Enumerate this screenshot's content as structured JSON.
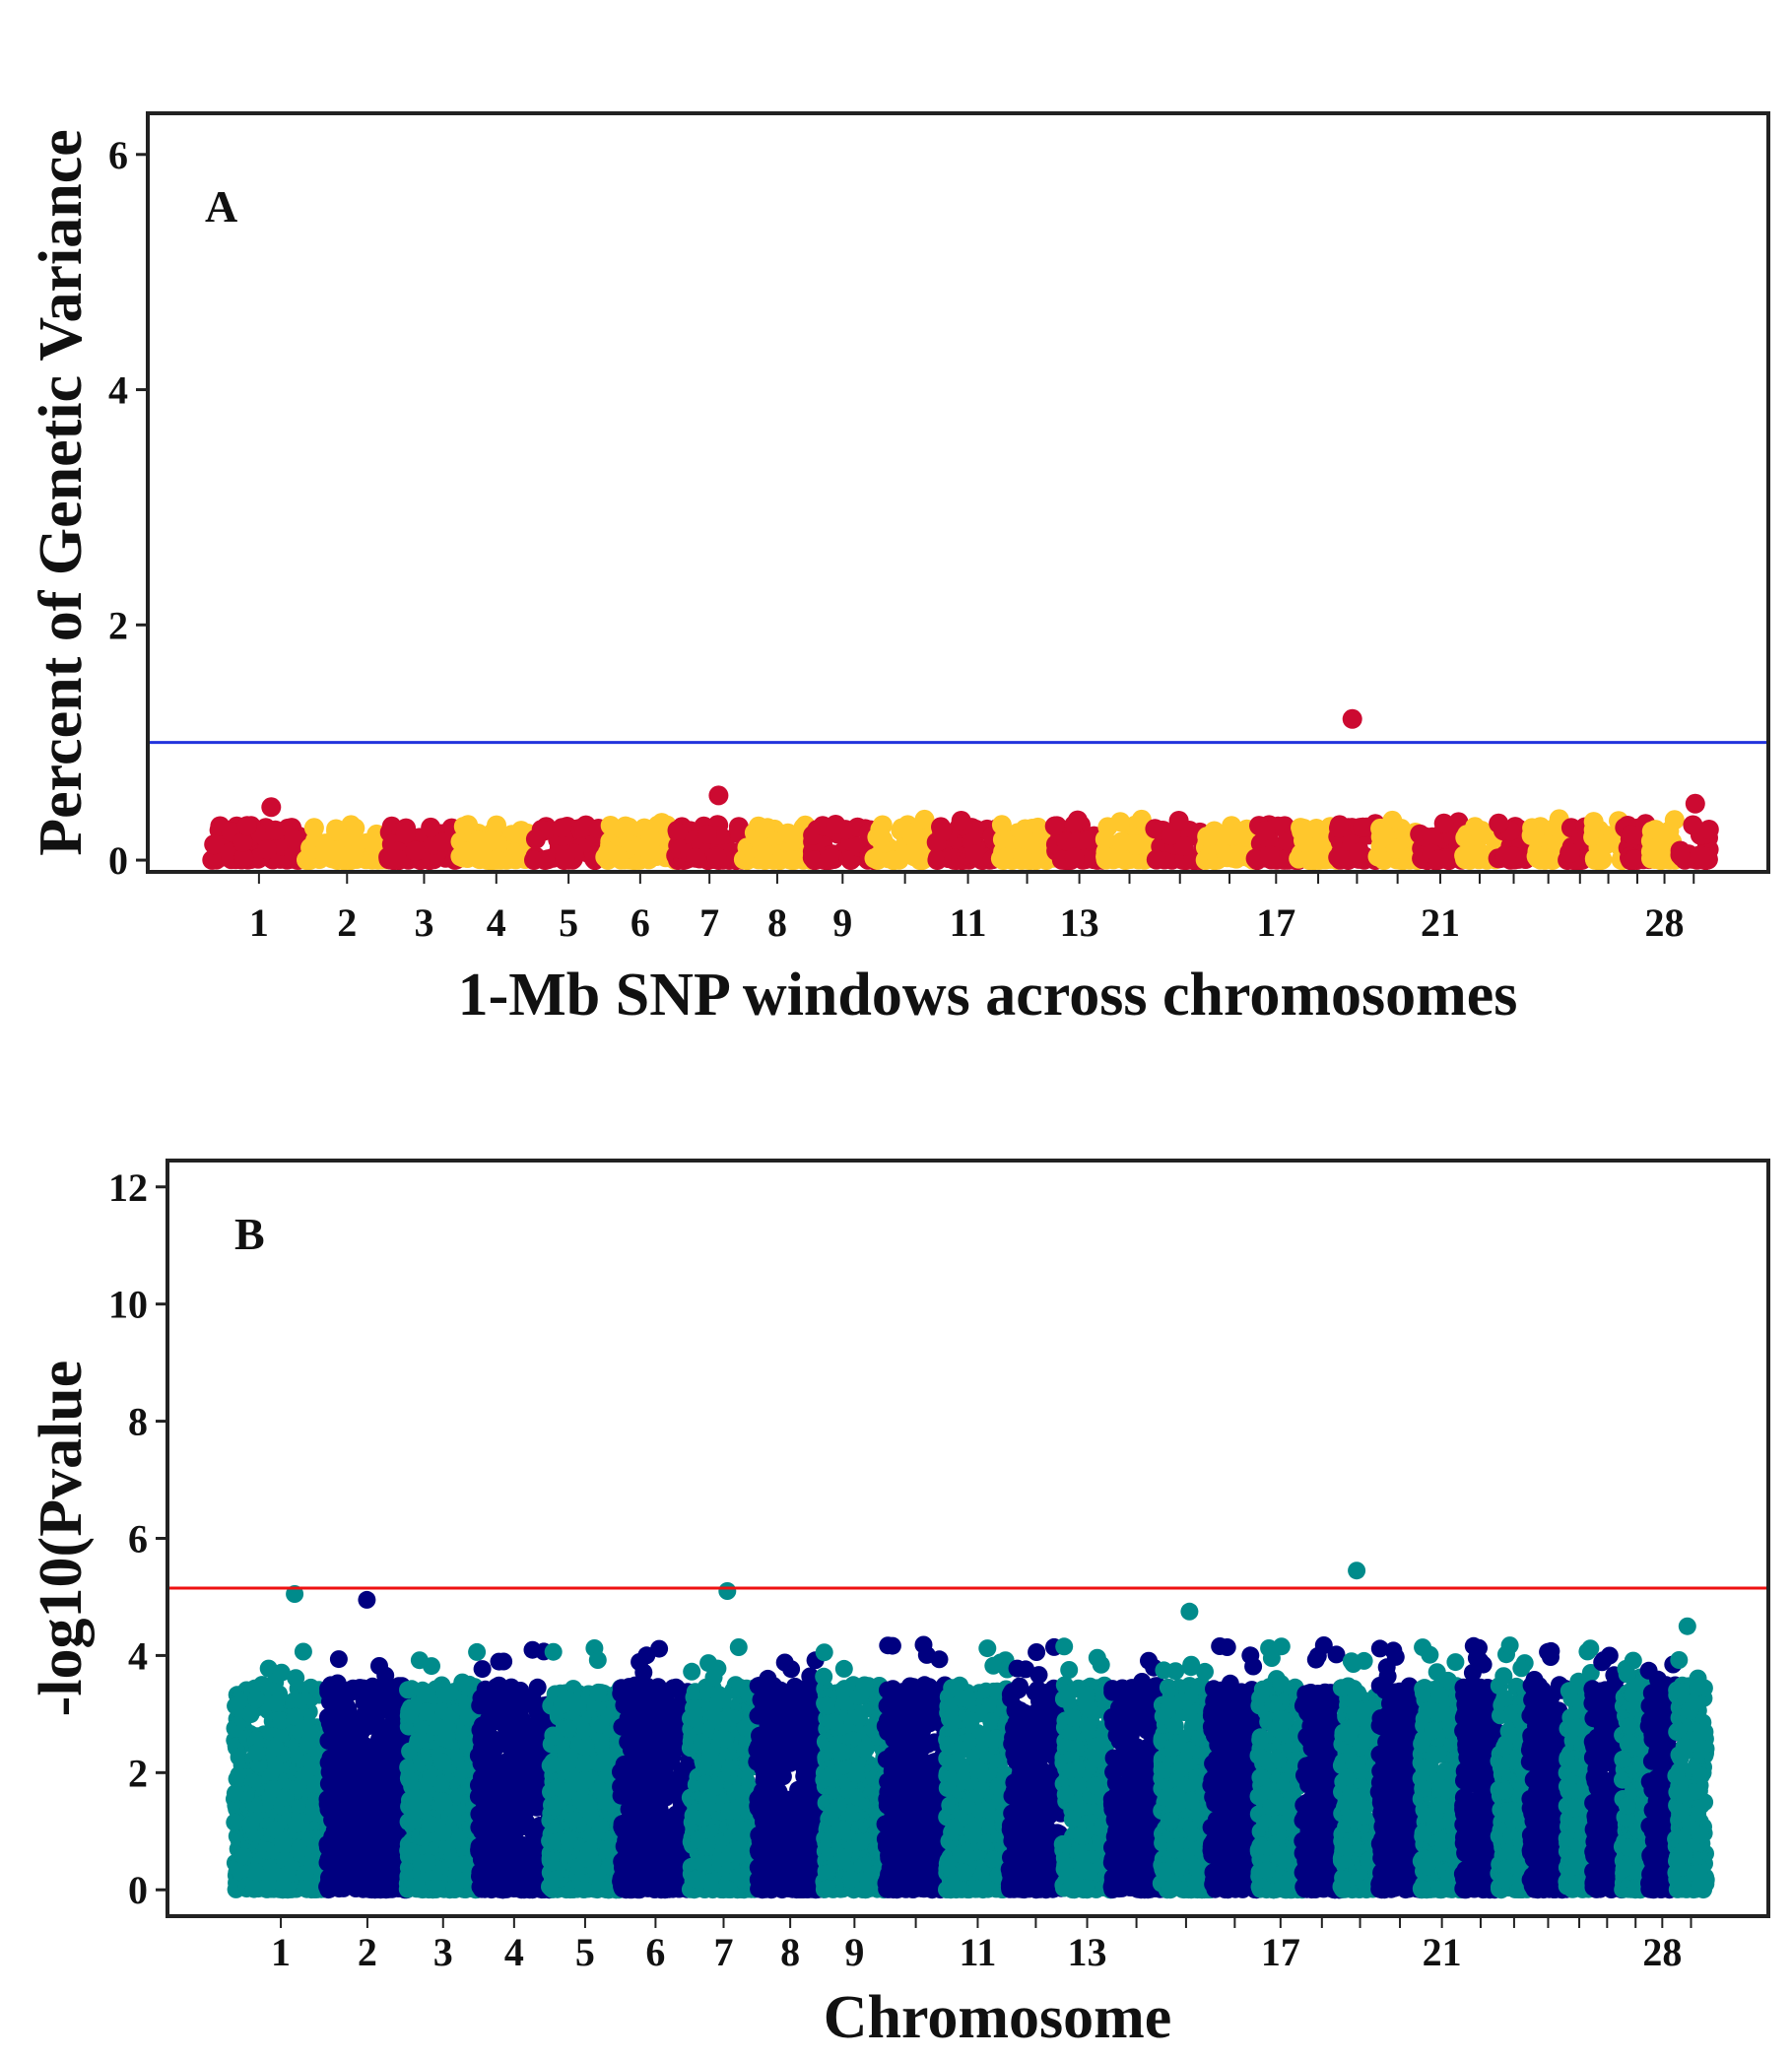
{
  "chart_data": [
    {
      "type": "scatter",
      "panel_label": "A",
      "ylabel": "Percent of Genetic Variance",
      "xlabel": "1-Mb SNP windows across chromosomes",
      "ylim": [
        -0.1,
        6.35
      ],
      "yticks": [
        0,
        2,
        4,
        6
      ],
      "threshold": {
        "value": 1.0,
        "color": "#2233dd"
      },
      "colors": [
        "#cc0a31",
        "#ffc72c"
      ],
      "marker": "circle",
      "grid": false,
      "chromosome_tick_labels": [
        "1",
        "2",
        "3",
        "4",
        "5",
        "6",
        "7",
        "8",
        "9",
        "11",
        "13",
        "17",
        "21",
        "28"
      ],
      "peaks": [
        {
          "chromosome": 19,
          "value": 1.2
        },
        {
          "chromosome": 7,
          "value": 0.55
        },
        {
          "chromosome": 1,
          "value": 0.45
        },
        {
          "chromosome": 29,
          "value": 0.48
        }
      ],
      "typical_range": [
        0,
        0.3
      ]
    },
    {
      "type": "scatter",
      "panel_label": "B",
      "ylabel": "-log10(Pvalue",
      "xlabel": "Chromosome",
      "ylim": [
        -0.45,
        12.45
      ],
      "yticks": [
        0,
        2,
        4,
        6,
        8,
        10,
        12
      ],
      "threshold": {
        "value": 5.15,
        "color": "#ee1111"
      },
      "colors": [
        "#008b8b",
        "#000080"
      ],
      "marker": "circle",
      "grid": false,
      "chromosome_tick_labels": [
        "1",
        "2",
        "3",
        "4",
        "5",
        "6",
        "7",
        "8",
        "9",
        "11",
        "13",
        "17",
        "21",
        "28"
      ],
      "peaks": [
        {
          "chromosome": 19,
          "value": 5.45
        },
        {
          "chromosome": 7,
          "value": 5.1
        },
        {
          "chromosome": 1,
          "value": 5.05
        },
        {
          "chromosome": 2,
          "value": 4.95
        },
        {
          "chromosome": 15,
          "value": 4.75
        },
        {
          "chromosome": 29,
          "value": 4.5
        }
      ],
      "typical_range": [
        0,
        3.5
      ]
    }
  ]
}
